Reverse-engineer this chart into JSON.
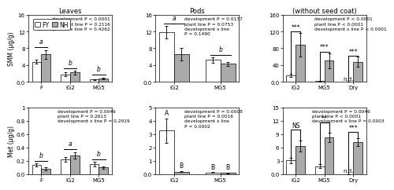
{
  "title_leaves": "Leaves",
  "title_pods": "Pods",
  "title_seeds": "(without seed coat)",
  "ylabel_smm": "SMM (μg/g)",
  "ylabel_met": "Met (μg/g)",
  "xlabel_leaves": [
    "F",
    "IG2",
    "MG5"
  ],
  "xlabel_pods": [
    "IG2",
    "MG5"
  ],
  "xlabel_seeds": [
    "IG2",
    "MG5",
    "Dry"
  ],
  "leaves_smm_FY": [
    4.8,
    1.8,
    0.5
  ],
  "leaves_smm_FY_err": [
    0.4,
    0.4,
    0.1
  ],
  "leaves_smm_NH": [
    6.5,
    2.2,
    0.8
  ],
  "leaves_smm_NH_err": [
    1.1,
    0.4,
    0.2
  ],
  "leaves_met_FY": [
    0.14,
    0.22,
    0.15
  ],
  "leaves_met_FY_err": [
    0.02,
    0.04,
    0.03
  ],
  "leaves_met_NH": [
    0.08,
    0.28,
    0.1
  ],
  "leaves_met_NH_err": [
    0.02,
    0.05,
    0.02
  ],
  "pods_smm_FY": [
    11.8,
    5.2
  ],
  "pods_smm_FY_err": [
    1.5,
    0.6
  ],
  "pods_smm_NH": [
    6.5,
    4.3
  ],
  "pods_smm_NH_err": [
    1.5,
    0.5
  ],
  "pods_met_FY": [
    3.25,
    0.12
  ],
  "pods_met_FY_err": [
    0.9,
    0.04
  ],
  "pods_met_NH": [
    0.18,
    0.1
  ],
  "pods_met_NH_err": [
    0.04,
    0.03
  ],
  "seeds_smm_FY": [
    15.0,
    2.0,
    0.0
  ],
  "seeds_smm_FY_err": [
    4.0,
    1.0,
    0.0
  ],
  "seeds_smm_NH": [
    88.0,
    50.0,
    48.0
  ],
  "seeds_smm_NH_err": [
    28.0,
    18.0,
    12.0
  ],
  "seeds_met_FY": [
    3.1,
    1.8,
    0.0
  ],
  "seeds_met_FY_err": [
    0.6,
    0.5,
    0.0
  ],
  "seeds_met_NH": [
    6.3,
    8.2,
    7.2
  ],
  "seeds_met_NH_err": [
    1.3,
    1.1,
    0.9
  ],
  "color_FY": "#ffffff",
  "color_NH": "#aaaaaa",
  "bar_edge": "#000000",
  "bar_width": 0.32,
  "leaves_smm_stats": "development P < 0.0001\nplant line P = 0.2116\ndevelopment x line P = 0.4262",
  "leaves_met_stats": "development P = 0.0046\nplant line P = 0.2613\ndevelopment x line P = 0.2919",
  "pods_smm_stats": "development P = 0.0137\nplant line P = 0.0753\ndevelopment x line\nP = 0.1490",
  "pods_met_stats": "development P = 0.0008\nplant line P = 0.0016\ndevelopment x line\nP = 0.0002",
  "seeds_smm_stats": "development P < 0.0001\nplant line P < 0.0001\ndevelopment x line P < 0.0001",
  "seeds_met_stats": "development P = 0.0046\nplant line P < 0.0001\ndevelopment x line P = 0.0003",
  "leaves_smm_ylim": [
    0,
    16.0
  ],
  "leaves_met_ylim": [
    0,
    1.0
  ],
  "pods_smm_ylim": [
    0,
    16.0
  ],
  "pods_met_ylim": [
    0,
    5.0
  ],
  "seeds_smm_ylim": [
    0,
    160
  ],
  "seeds_met_ylim": [
    0,
    15.0
  ],
  "leaves_smm_yticks": [
    0.0,
    4.0,
    8.0,
    12.0,
    16.0
  ],
  "leaves_met_yticks": [
    0.0,
    0.2,
    0.4,
    0.6,
    0.8,
    1.0
  ],
  "pods_smm_yticks": [
    0.0,
    4.0,
    8.0,
    12.0,
    16.0
  ],
  "pods_met_yticks": [
    0.0,
    1.0,
    2.0,
    3.0,
    4.0,
    5.0
  ],
  "seeds_smm_yticks": [
    0,
    40,
    80,
    120,
    160
  ],
  "seeds_met_yticks": [
    0.0,
    3.0,
    6.0,
    9.0,
    12.0,
    15.0
  ]
}
